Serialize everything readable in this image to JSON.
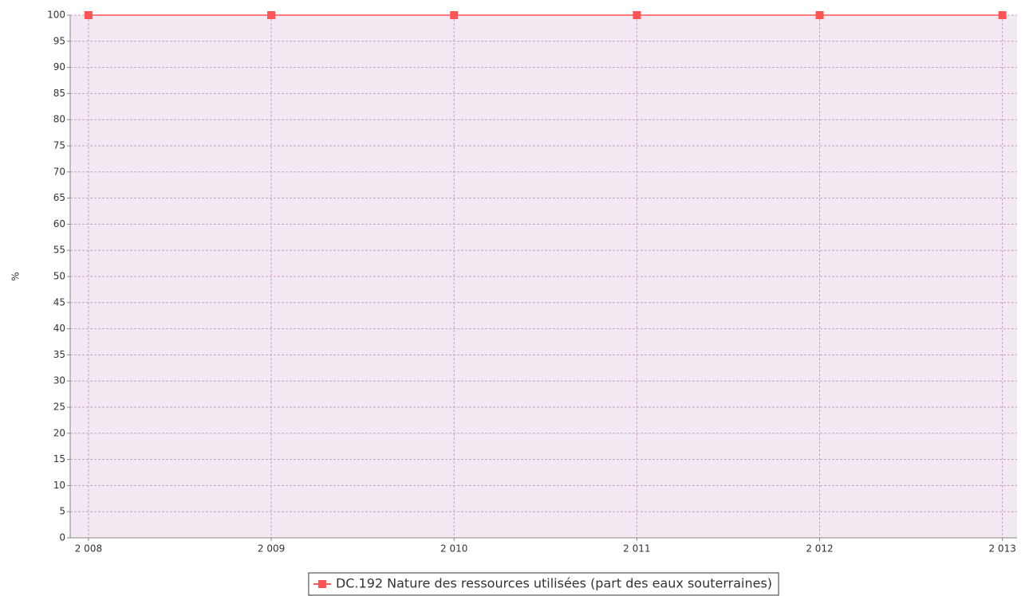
{
  "chart_data": {
    "type": "line",
    "ylabel": "%",
    "x": [
      2008,
      2009,
      2010,
      2011,
      2012,
      2013
    ],
    "series": [
      {
        "name": "DC.192 Nature des ressources utilisées (part des eaux souterraines)",
        "color": "#ff5555",
        "values": [
          100,
          100,
          100,
          100,
          100,
          100
        ]
      }
    ],
    "xlim": [
      2007.9,
      2013.08
    ],
    "xticks": [
      {
        "value": 2008,
        "label": "2 008"
      },
      {
        "value": 2009,
        "label": "2 009"
      },
      {
        "value": 2010,
        "label": "2 010"
      },
      {
        "value": 2011,
        "label": "2 011"
      },
      {
        "value": 2012,
        "label": "2 012"
      },
      {
        "value": 2013,
        "label": "2 013"
      }
    ],
    "ylim": [
      0,
      100
    ],
    "yticks": [
      0,
      5,
      10,
      15,
      20,
      25,
      30,
      35,
      40,
      45,
      50,
      55,
      60,
      65,
      70,
      75,
      80,
      85,
      90,
      95,
      100
    ],
    "grid": true,
    "legend": "bottom"
  }
}
